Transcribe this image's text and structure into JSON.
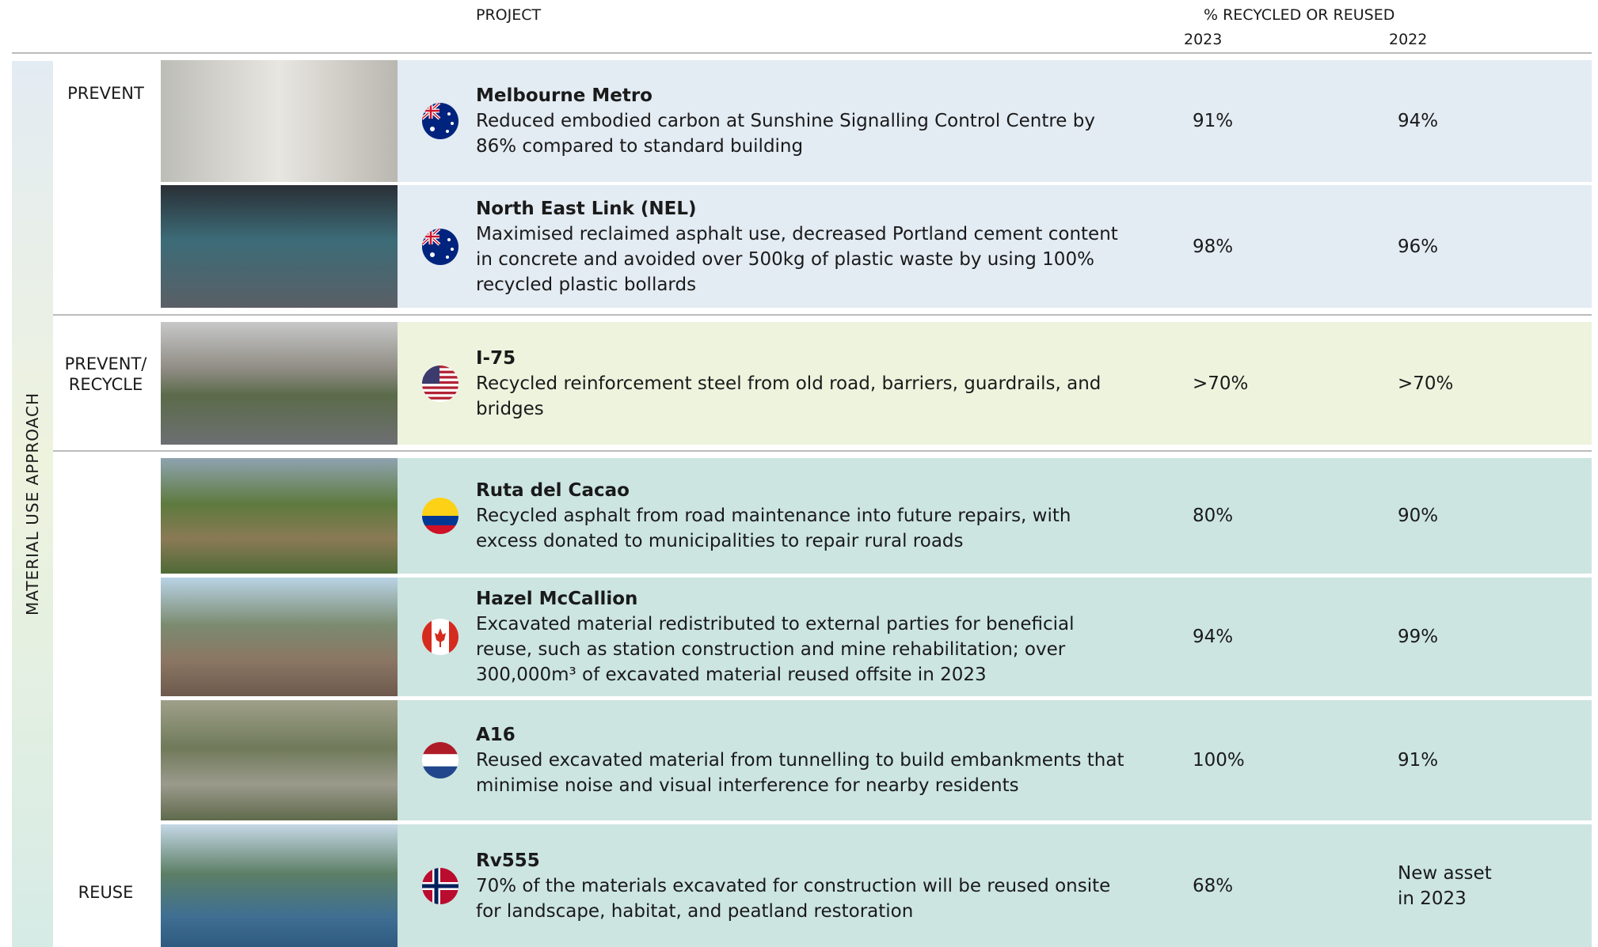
{
  "header": {
    "project": "PROJECT",
    "metric_title": "% RECYCLED OR REUSED",
    "year_1": "2023",
    "year_2": "2022"
  },
  "side_label": "MATERIAL USE APPROACH",
  "groups": [
    {
      "label": "PREVENT",
      "rows": [
        {
          "project": "Melbourne Metro",
          "description": "Reduced embodied carbon at Sunshine Signalling Control Centre by 86% compared to standard building",
          "value_2023": "91%",
          "value_2022": "94%"
        },
        {
          "project": "North East Link (NEL)",
          "description": "Maximised reclaimed asphalt use, decreased Portland cement content in concrete and avoided over 500kg of plastic waste by using 100% recycled plastic bollards",
          "value_2023": "98%",
          "value_2022": "96%"
        }
      ]
    },
    {
      "label": "PREVENT/ RECYCLE",
      "rows": [
        {
          "project": "I-75",
          "description": "Recycled reinforcement steel from old road, barriers, guardrails, and bridges",
          "value_2023": ">70%",
          "value_2022": ">70%"
        }
      ]
    },
    {
      "label": "REUSE",
      "rows": [
        {
          "project": "Ruta del Cacao",
          "description": "Recycled asphalt from road maintenance into future repairs, with excess donated to municipalities to repair rural roads",
          "value_2023": "80%",
          "value_2022": "90%"
        },
        {
          "project": "Hazel McCallion",
          "description": "Excavated material redistributed to external parties for beneficial reuse, such as station construction and mine rehabilitation; over 300,000m³ of excavated material reused offsite in 2023",
          "value_2023": "94%",
          "value_2022": "99%"
        },
        {
          "project": "A16",
          "description": "Reused excavated material from tunnelling to build embankments that minimise noise and visual interference for nearby residents",
          "value_2023": "100%",
          "value_2022": "91%"
        },
        {
          "project": "Rv555",
          "description": "70% of the materials excavated for construction will be reused onsite for landscape, habitat, and peatland restoration",
          "value_2023": "68%",
          "value_2022": "New asset in 2023"
        }
      ]
    }
  ]
}
